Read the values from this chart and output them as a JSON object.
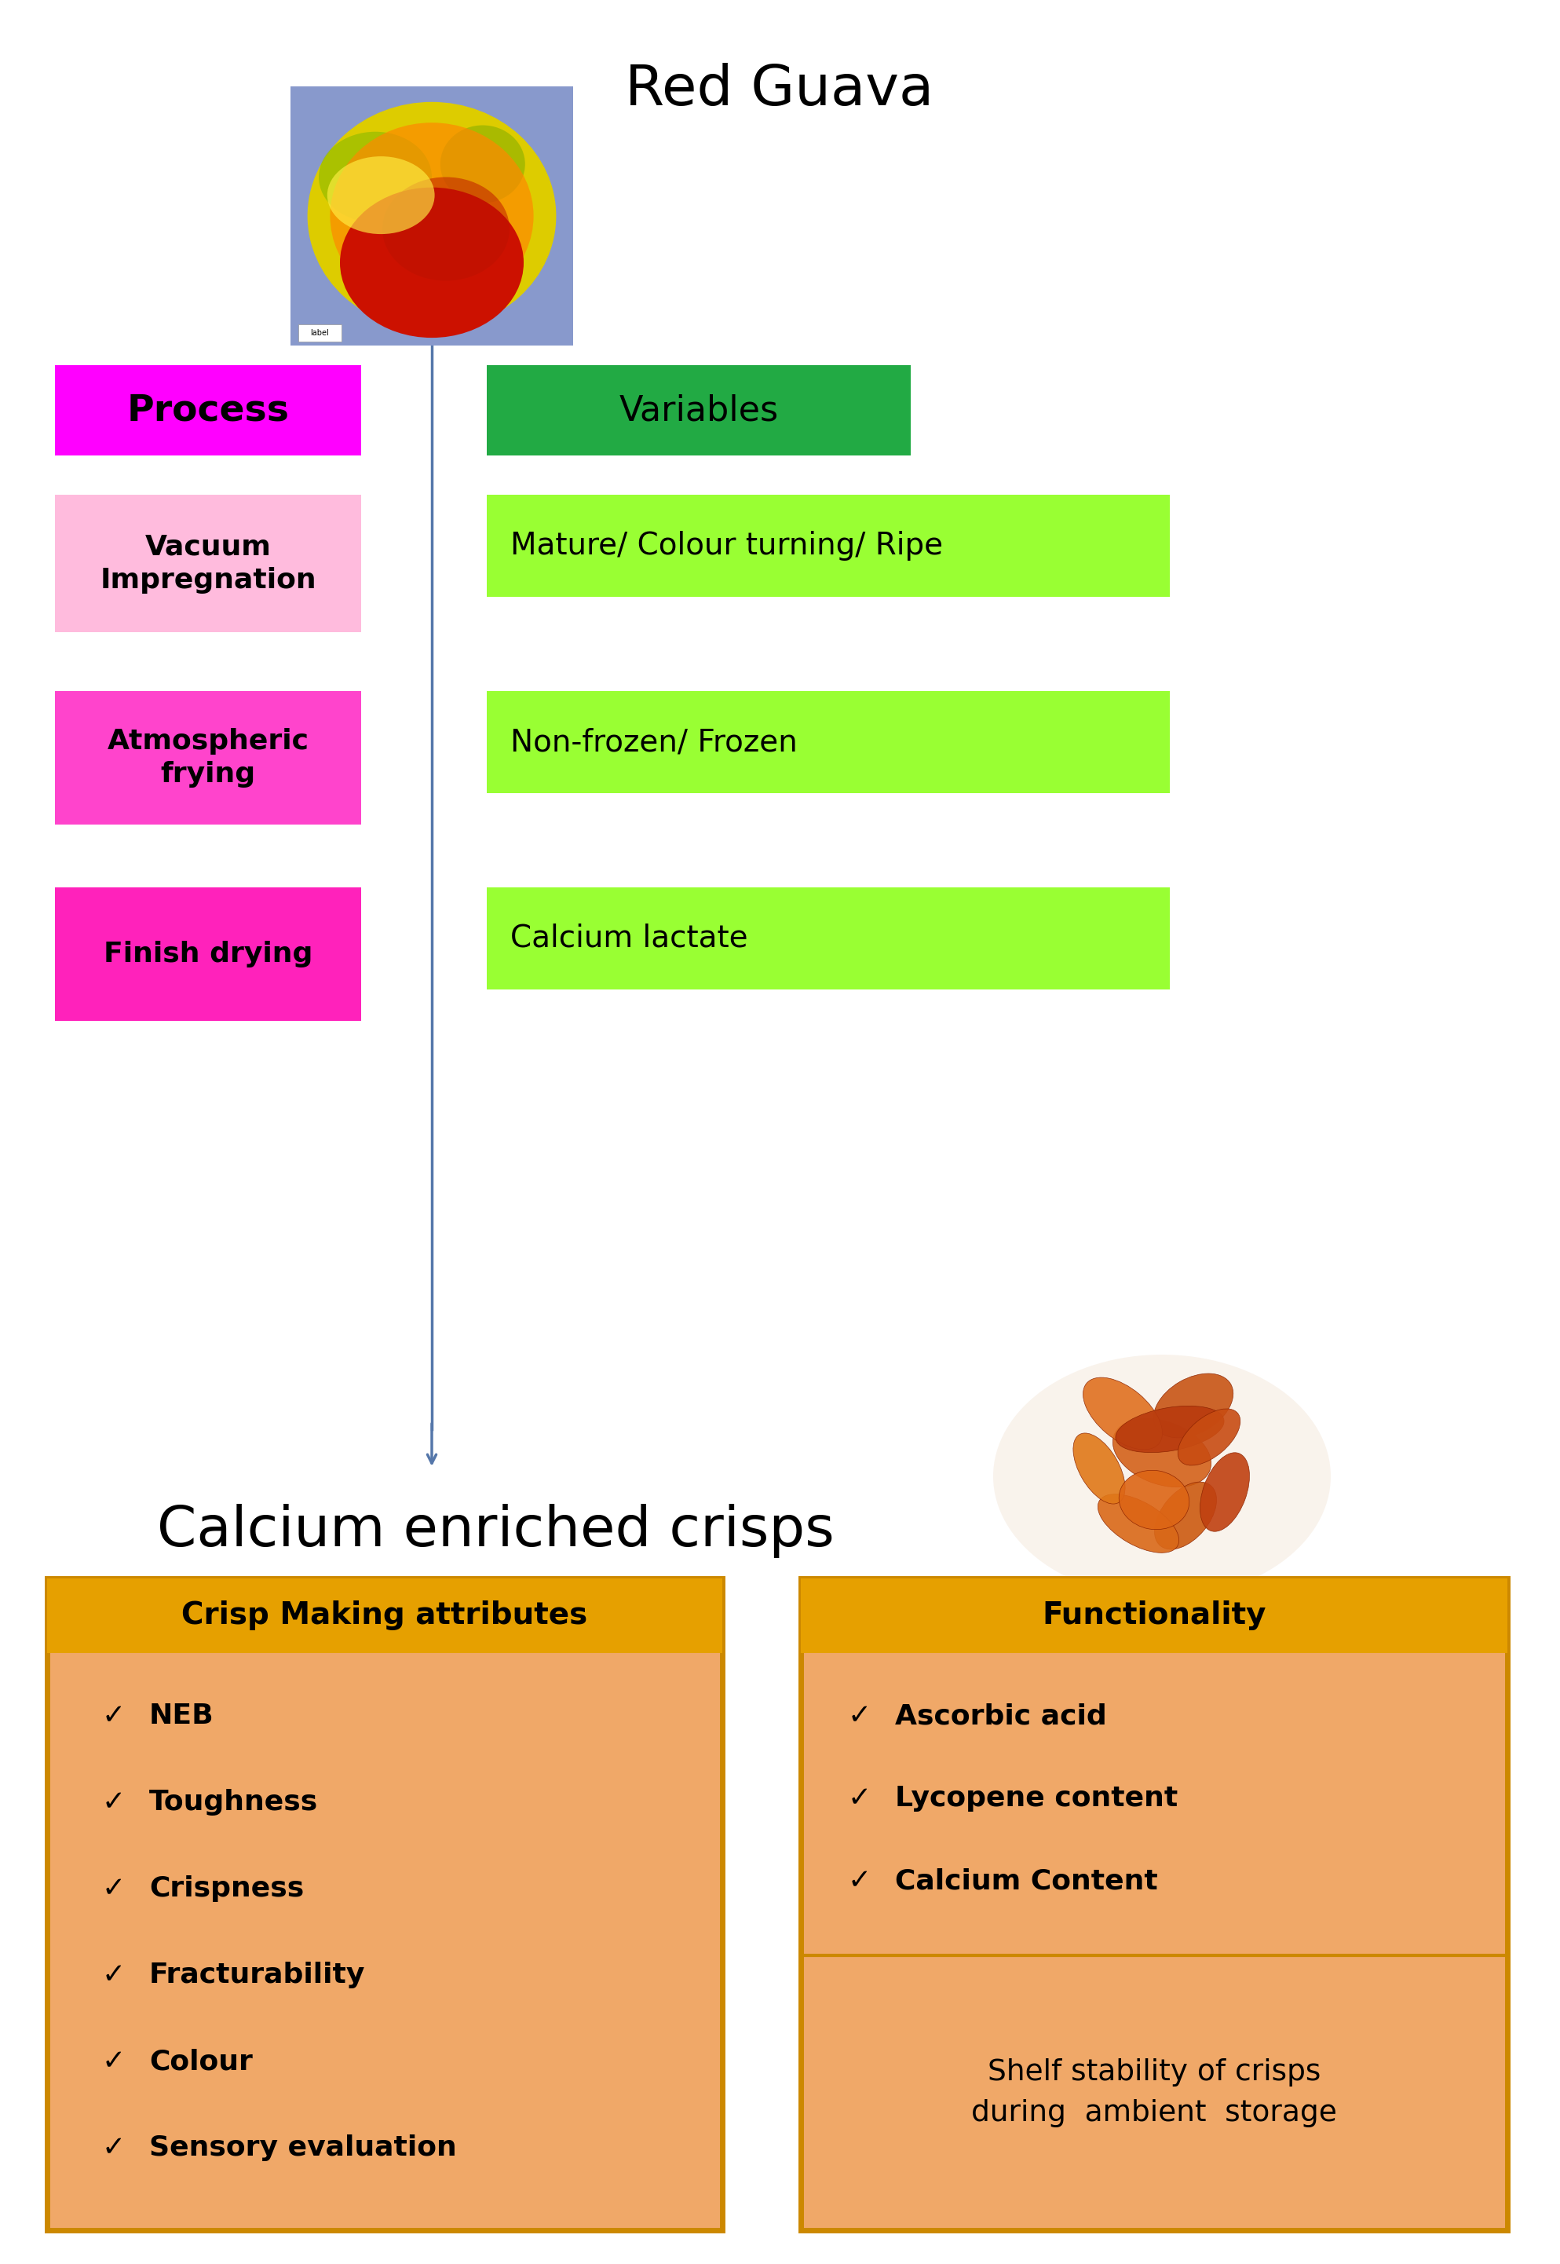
{
  "title": "Red Guava",
  "title_fontsize": 52,
  "bg_color": "#ffffff",
  "process_label": "Process",
  "variables_label": "Variables",
  "process_header_color": "#FF00FF",
  "variables_header_color": "#22AA44",
  "process_items": [
    "Vacuum\nImpregnation",
    "Atmospheric\nfrying",
    "Finish drying"
  ],
  "process_item_colors": [
    "#FFB3E6",
    "#FF44CC",
    "#FF22BB"
  ],
  "variables_items": [
    "Mature/ Colour turning/ Ripe",
    "Non-frozen/ Frozen",
    "Calcium lactate"
  ],
  "variables_item_color": "#99FF33",
  "calcium_text": "Calcium enriched crisps",
  "calcium_fontsize": 52,
  "box1_title": "Crisp Making attributes",
  "box1_items": [
    "NEB",
    "Toughness",
    "Crispness",
    "Fracturability",
    "Colour",
    "Sensory evaluation"
  ],
  "box2_title": "Functionality",
  "box2_items_top": [
    "Ascorbic acid",
    "Lycopene content",
    "Calcium Content"
  ],
  "box2_items_bottom": "Shelf stability of crisps\nduring  ambient  storage",
  "box_border_color": "#CC8800",
  "box_fill_color": "#F0A868",
  "box_title_bg": "#E6A000",
  "line_color": "#5577AA"
}
